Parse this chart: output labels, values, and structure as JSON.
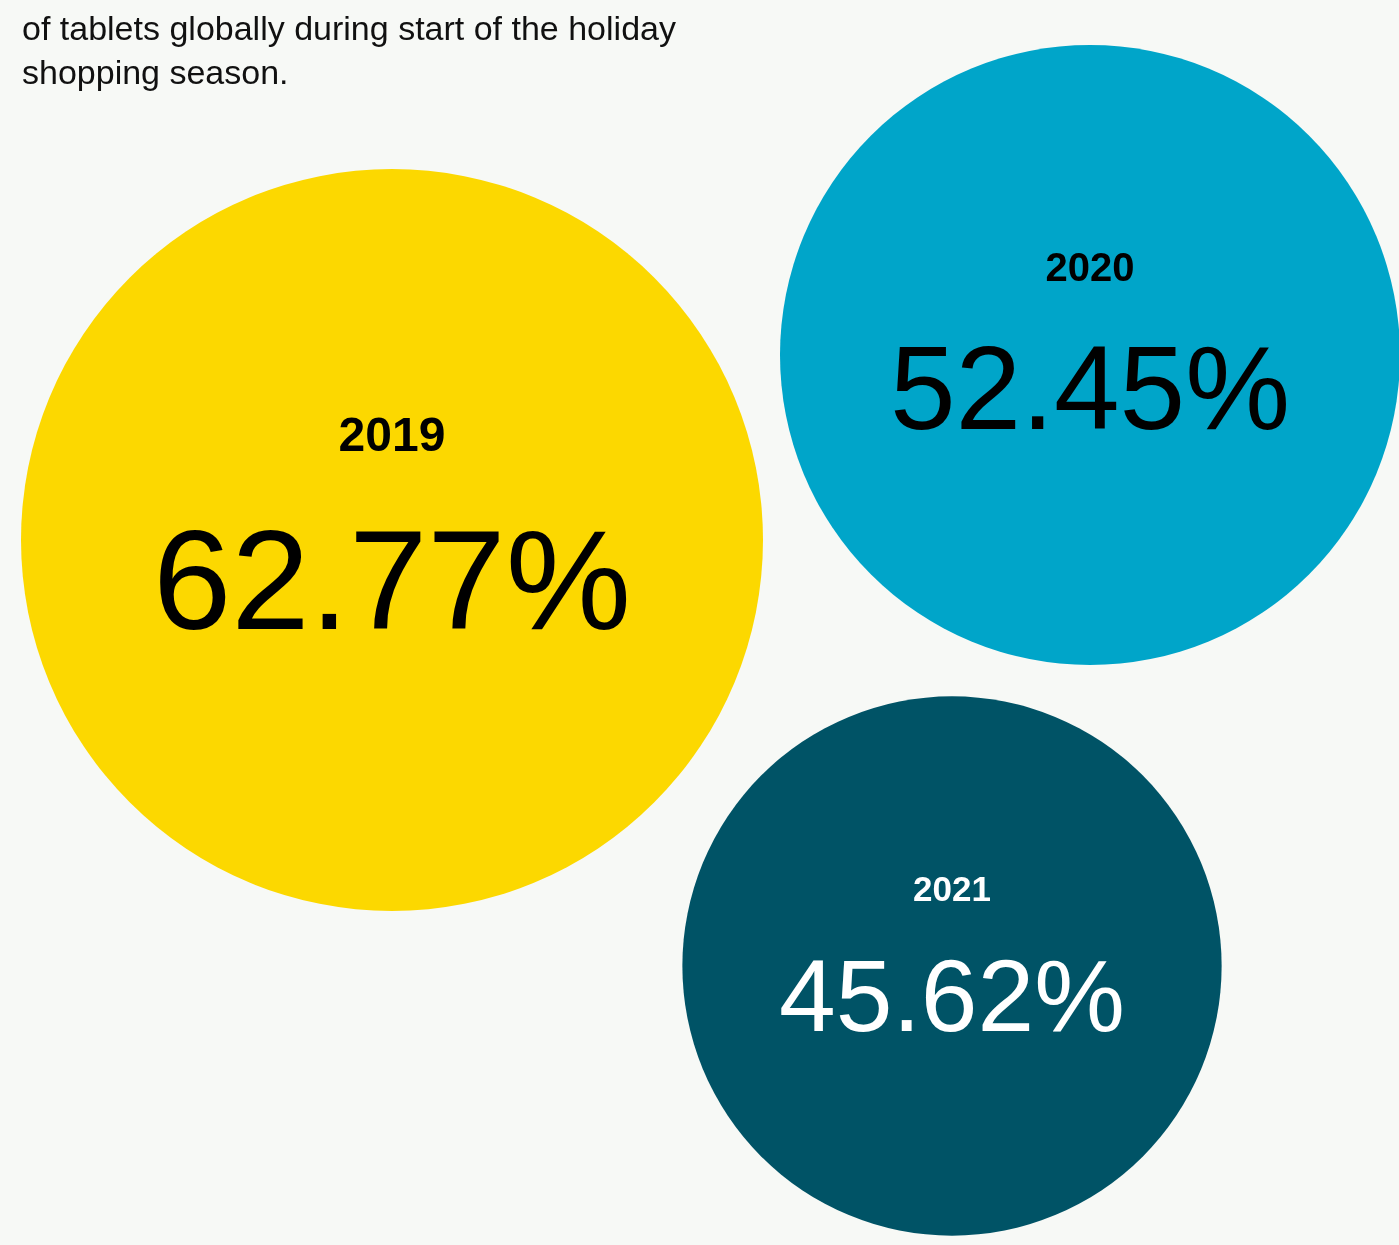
{
  "chart_data": {
    "type": "other",
    "subtitle": "of tablets globally during start of the holiday shopping season.",
    "categories": [
      "2019",
      "2020",
      "2021"
    ],
    "values": [
      62.77,
      52.45,
      45.62
    ],
    "value_labels": [
      "62.77%",
      "52.45%",
      "45.62%"
    ],
    "colors": [
      "#fcd800",
      "#00a5c9",
      "#005366"
    ]
  }
}
